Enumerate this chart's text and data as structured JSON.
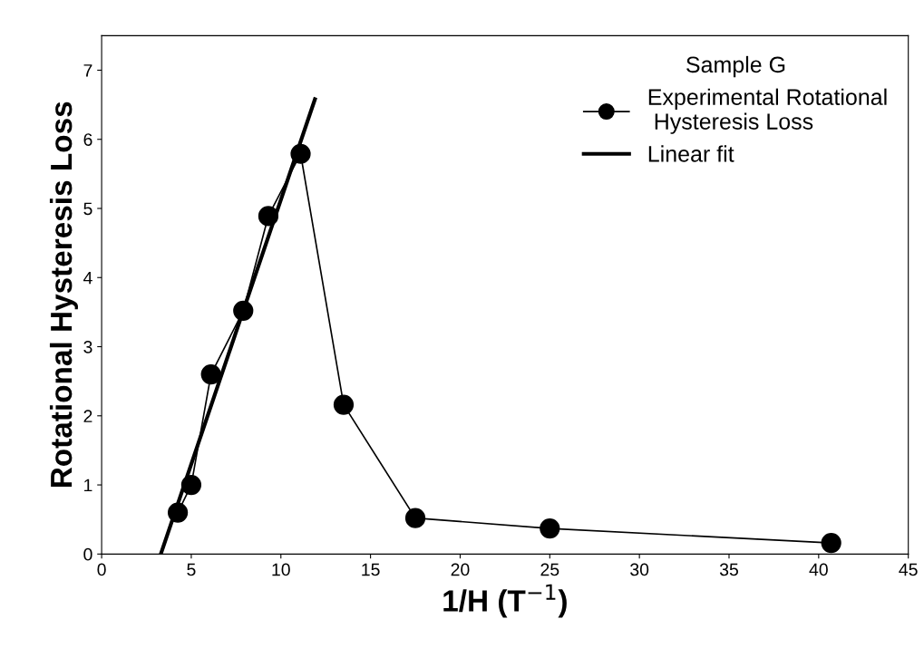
{
  "chart_data": {
    "type": "line",
    "xlabel": "1/H (T$^{−1}$)",
    "ylabel": "Rotational Hysteresis Loss",
    "legend_title": "Sample G",
    "xlim": [
      0,
      45
    ],
    "xticks": [
      0,
      5,
      10,
      15,
      20,
      25,
      30,
      35,
      40,
      45
    ],
    "ylim": [
      0,
      7.5
    ],
    "yticks": [
      0,
      1,
      2,
      3,
      4,
      5,
      6,
      7
    ],
    "grid": false,
    "legend": "top right",
    "series": [
      {
        "name": "Experimental Rotational\n Hysteresis Loss",
        "color": "#000000",
        "marker": "circle",
        "x": [
          4.25,
          5.0,
          6.1,
          7.9,
          9.3,
          11.1,
          13.5,
          17.5,
          25.0,
          40.7
        ],
        "values": [
          0.6,
          1.0,
          2.6,
          3.52,
          4.89,
          5.79,
          2.16,
          0.52,
          0.37,
          0.16
        ]
      },
      {
        "name": "Linear fit",
        "color": "#000000",
        "marker": "none",
        "x": [
          3.3,
          11.9
        ],
        "values": [
          0,
          6.58
        ]
      }
    ]
  }
}
